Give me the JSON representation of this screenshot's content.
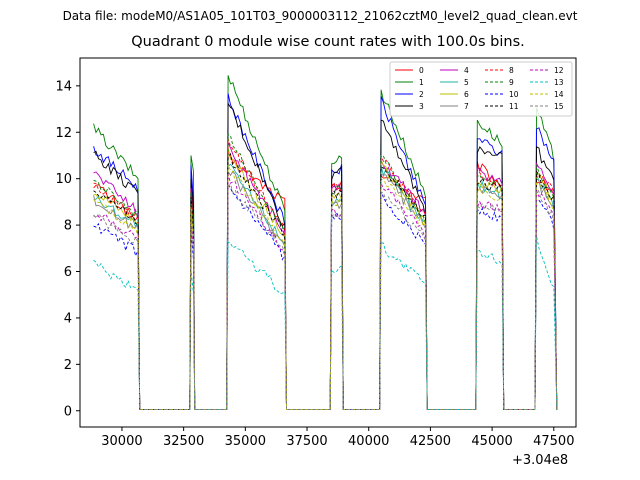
{
  "chart_data": {
    "type": "line",
    "suptitle": "Data file: modeM0/AS1A05_101T03_9000003112_21062cztM0_level2_quad_clean.evt",
    "title": "Quadrant 0 module wise count rates with 100.0s bins.",
    "xlabel": "",
    "ylabel": "",
    "x_offset_label": "+3.04e8",
    "xlim": [
      28300,
      48400
    ],
    "ylim": [
      -0.7,
      15.2
    ],
    "x_ticks": [
      30000,
      32500,
      35000,
      37500,
      40000,
      42500,
      45000,
      47500
    ],
    "x_tick_labels": [
      "30000",
      "32500",
      "35000",
      "37500",
      "40000",
      "42500",
      "45000",
      "47500"
    ],
    "y_ticks": [
      0,
      2,
      4,
      6,
      8,
      10,
      12,
      14
    ],
    "y_tick_labels": [
      "0",
      "2",
      "4",
      "6",
      "8",
      "10",
      "12",
      "14"
    ],
    "legend_position": "top-right",
    "grid": false,
    "active_segments": [
      {
        "start": 28850,
        "end": 30650,
        "shape": "decline"
      },
      {
        "start": 32800,
        "end": 32900,
        "shape": "spike"
      },
      {
        "start": 34300,
        "end": 36600,
        "shape": "decline"
      },
      {
        "start": 38500,
        "end": 38900,
        "shape": "rise"
      },
      {
        "start": 40500,
        "end": 42300,
        "shape": "decline"
      },
      {
        "start": 44400,
        "end": 45400,
        "shape": "rise"
      },
      {
        "start": 46800,
        "end": 47550,
        "shape": "decline"
      }
    ],
    "zero_level": 0.05,
    "series": [
      {
        "name": "0",
        "color": "#ff0000",
        "dashed": false,
        "level": [
          9.8,
          8.2,
          10.2,
          8.0,
          10.9,
          9.0,
          9.6,
          9.7,
          10.2,
          9.0,
          10.6,
          9.7,
          10.0,
          9.4
        ]
      },
      {
        "name": "1",
        "color": "#008000",
        "dashed": false,
        "level": [
          12.2,
          10.0,
          11.0,
          10.3,
          14.5,
          8.6,
          10.8,
          10.9,
          13.8,
          9.3,
          12.5,
          11.5,
          13.0,
          10.8
        ]
      },
      {
        "name": "2",
        "color": "#0000ff",
        "dashed": false,
        "level": [
          11.3,
          9.6,
          10.6,
          9.0,
          13.5,
          8.1,
          10.3,
          10.4,
          13.4,
          8.8,
          11.8,
          11.0,
          12.3,
          10.6
        ]
      },
      {
        "name": "3",
        "color": "#000000",
        "dashed": false,
        "level": [
          11.1,
          9.3,
          10.0,
          8.6,
          13.3,
          7.9,
          10.1,
          10.5,
          12.7,
          8.6,
          11.3,
          11.0,
          11.3,
          9.8
        ]
      },
      {
        "name": "4",
        "color": "#bf00bf",
        "dashed": false,
        "level": [
          10.3,
          8.6,
          9.6,
          8.1,
          11.4,
          7.7,
          9.5,
          9.6,
          10.8,
          8.5,
          10.3,
          9.8,
          10.8,
          9.3
        ]
      },
      {
        "name": "5",
        "color": "#20b2aa",
        "dashed": false,
        "level": [
          9.2,
          8.0,
          8.8,
          7.5,
          10.6,
          7.2,
          9.1,
          9.1,
          10.5,
          8.0,
          9.8,
          9.3,
          10.1,
          8.8
        ]
      },
      {
        "name": "6",
        "color": "#bfbf00",
        "dashed": false,
        "level": [
          9.5,
          8.1,
          9.1,
          7.7,
          11.2,
          7.4,
          9.2,
          9.3,
          10.6,
          8.2,
          9.9,
          9.5,
          10.3,
          9.0
        ]
      },
      {
        "name": "7",
        "color": "#808080",
        "dashed": false,
        "level": [
          9.1,
          7.8,
          8.7,
          7.4,
          10.4,
          7.1,
          8.9,
          8.9,
          10.3,
          7.9,
          9.6,
          9.2,
          9.9,
          8.6
        ]
      },
      {
        "name": "8",
        "color": "#ff0000",
        "dashed": true,
        "level": [
          9.7,
          8.3,
          9.5,
          8.0,
          11.6,
          7.8,
          9.6,
          9.6,
          11.0,
          8.4,
          10.2,
          9.7,
          10.4,
          9.3
        ]
      },
      {
        "name": "9",
        "color": "#008000",
        "dashed": true,
        "level": [
          9.9,
          8.4,
          9.4,
          7.9,
          12.0,
          7.6,
          9.5,
          9.5,
          10.9,
          8.3,
          10.0,
          9.6,
          10.5,
          9.2
        ]
      },
      {
        "name": "10",
        "color": "#0000ff",
        "dashed": true,
        "level": [
          8.0,
          6.8,
          7.8,
          6.5,
          9.6,
          6.6,
          8.3,
          8.4,
          9.2,
          7.2,
          8.7,
          8.2,
          9.2,
          7.9
        ]
      },
      {
        "name": "11",
        "color": "#000000",
        "dashed": true,
        "level": [
          9.6,
          8.1,
          9.2,
          7.8,
          11.0,
          7.6,
          9.4,
          9.4,
          10.6,
          8.3,
          9.9,
          9.5,
          10.2,
          9.0
        ]
      },
      {
        "name": "12",
        "color": "#bf00bf",
        "dashed": true,
        "level": [
          8.6,
          7.4,
          8.2,
          7.0,
          10.1,
          6.9,
          8.5,
          8.6,
          9.8,
          7.6,
          9.0,
          8.7,
          9.6,
          8.3
        ]
      },
      {
        "name": "13",
        "color": "#00bfbf",
        "dashed": true,
        "level": [
          6.3,
          5.2,
          6.1,
          5.0,
          7.4,
          5.0,
          6.1,
          6.2,
          7.1,
          5.5,
          6.8,
          6.5,
          7.4,
          5.2
        ]
      },
      {
        "name": "14",
        "color": "#bfbf00",
        "dashed": true,
        "level": [
          9.0,
          7.7,
          8.8,
          7.4,
          10.5,
          7.2,
          8.9,
          9.0,
          10.1,
          7.9,
          9.4,
          9.1,
          9.9,
          8.6
        ]
      },
      {
        "name": "15",
        "color": "#808080",
        "dashed": true,
        "level": [
          8.4,
          7.2,
          8.0,
          6.8,
          9.8,
          6.9,
          8.4,
          8.5,
          9.5,
          7.5,
          8.9,
          8.6,
          9.5,
          8.2
        ]
      }
    ]
  }
}
